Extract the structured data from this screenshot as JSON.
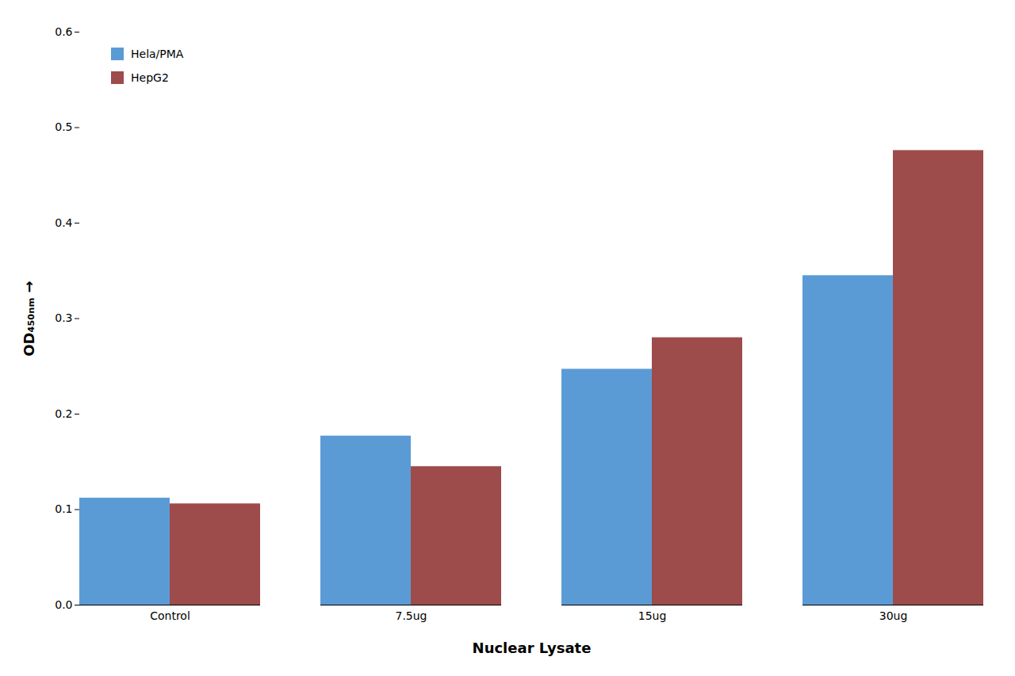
{
  "chart_data": {
    "type": "bar",
    "x_label": "Nuclear Lysate",
    "y_label": "OD₄₅₀ₙₘ",
    "categories": [
      "Control",
      "7.5ug",
      "15ug",
      "30ug"
    ],
    "series": [
      {
        "name": "Hela/PMA",
        "color": "#5B9BD5",
        "values": [
          0.112,
          0.177,
          0.247,
          0.345
        ]
      },
      {
        "name": "HepG2",
        "color": "#9E4B4B",
        "values": [
          0.106,
          0.145,
          0.28,
          0.476
        ]
      }
    ],
    "ylim": [
      0,
      0.6
    ],
    "yticks": [
      {
        "value": 0,
        "label": "0.0"
      },
      0.1,
      0.2,
      0.3,
      0.4,
      0.5,
      0.6
    ],
    "grid": false,
    "legend": "upper left"
  }
}
